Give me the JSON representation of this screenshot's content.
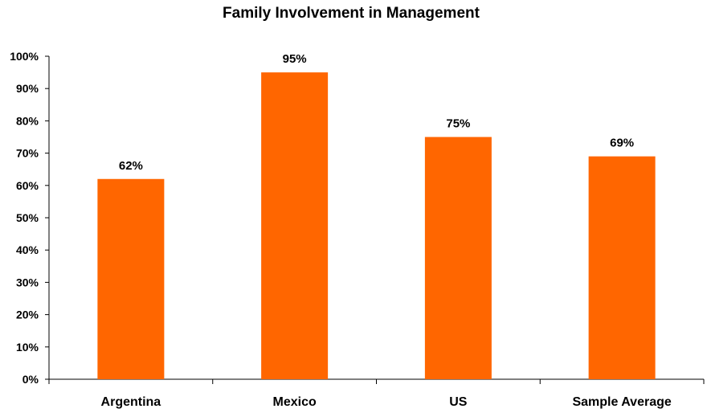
{
  "chart_data": {
    "type": "bar",
    "title": "Family Involvement in Management",
    "xlabel": "",
    "ylabel": "",
    "categories": [
      "Argentina",
      "Mexico",
      "US",
      "Sample Average"
    ],
    "values": [
      62,
      95,
      75,
      69
    ],
    "data_labels": [
      "62%",
      "95%",
      "75%",
      "69%"
    ],
    "ylim": [
      0,
      100
    ],
    "yticks": [
      0,
      10,
      20,
      30,
      40,
      50,
      60,
      70,
      80,
      90,
      100
    ],
    "ytick_labels": [
      "0%",
      "10%",
      "20%",
      "30%",
      "40%",
      "50%",
      "60%",
      "70%",
      "80%",
      "90%",
      "100%"
    ],
    "grid": false,
    "legend": "none",
    "bar_color": "#FF6600"
  }
}
